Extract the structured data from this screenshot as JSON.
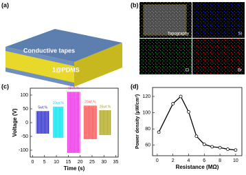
{
  "panels": {
    "a": {
      "label": "(a)",
      "top_layer": "Conductive tapes",
      "bottom_layer": "1@PDMS"
    },
    "b": {
      "label": "(b)",
      "images": [
        "Topography",
        "Si",
        "Cl",
        "Br"
      ]
    }
  },
  "chart_data": [
    {
      "type": "burst",
      "label": "(c)",
      "x_label": "Time (s)",
      "y_label": "Voltage (V)",
      "xlim": [
        -1,
        36
      ],
      "xticks": [
        0,
        5,
        10,
        15,
        20,
        25,
        30,
        35
      ],
      "ylim": [
        -125,
        125
      ],
      "yticks": [
        -100,
        -50,
        0,
        50,
        100
      ],
      "series": [
        {
          "name": "5wt.%",
          "color": "#2a2ab0",
          "x": [
            1.5,
            7
          ],
          "values": [
            -40,
            42
          ]
        },
        {
          "name": "10wt.%",
          "color": "#1fd6e6",
          "x": [
            8.5,
            13
          ],
          "values": [
            -55,
            58
          ]
        },
        {
          "name": "15wt.%",
          "color": "#e040d8",
          "x": [
            14.5,
            20
          ],
          "values": [
            -110,
            112
          ]
        },
        {
          "name": "20wt.%",
          "color": "#f06060",
          "x": [
            21.5,
            27
          ],
          "values": [
            -60,
            62
          ]
        },
        {
          "name": "25wt.%",
          "color": "#a8a030",
          "x": [
            28,
            33
          ],
          "values": [
            -45,
            45
          ]
        }
      ]
    },
    {
      "type": "line",
      "label": "(d)",
      "x_label": "Resistance (MΩ)",
      "y_label": "Power density (μW/cm²)",
      "xlim": [
        -0.6,
        10.8
      ],
      "xticks": [
        0,
        2,
        4,
        6,
        8,
        10
      ],
      "ylim": [
        47,
        131
      ],
      "yticks": [
        60,
        80,
        100,
        120
      ],
      "x": [
        0.2,
        2,
        3,
        4,
        5,
        6,
        7,
        8,
        9,
        10
      ],
      "values": [
        76,
        111,
        120,
        101,
        71,
        61,
        58,
        57,
        55,
        54
      ],
      "color": "#000000"
    }
  ]
}
